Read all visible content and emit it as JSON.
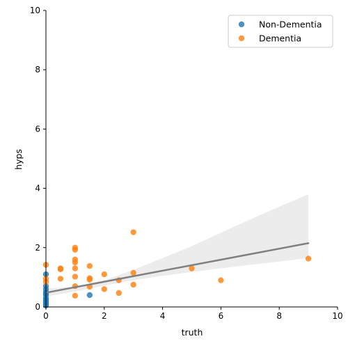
{
  "chart_data": {
    "type": "scatter",
    "xlabel": "truth",
    "ylabel": "hyps",
    "xlim": [
      0,
      10
    ],
    "ylim": [
      0,
      10
    ],
    "x_ticks": [
      0,
      2,
      4,
      6,
      8,
      10
    ],
    "y_ticks": [
      0,
      2,
      4,
      6,
      8,
      10
    ],
    "grid": false,
    "legend_position": "top-right",
    "series": [
      {
        "name": "Non-Dementia",
        "color": "#1f77b4",
        "points": [
          [
            0,
            1.1
          ],
          [
            0,
            0.7
          ],
          [
            0,
            0.6
          ],
          [
            0,
            0.5
          ],
          [
            0,
            0.45
          ],
          [
            0,
            0.4
          ],
          [
            0,
            0.3
          ],
          [
            0,
            0.25
          ],
          [
            0,
            0.2
          ],
          [
            0,
            0.15
          ],
          [
            0,
            0.1
          ],
          [
            0,
            0.05
          ],
          [
            1.5,
            0.4
          ]
        ]
      },
      {
        "name": "Dementia",
        "color": "#ff7f0e",
        "points": [
          [
            0,
            1.42
          ],
          [
            0,
            0.95
          ],
          [
            0,
            0.85
          ],
          [
            0.5,
            1.3
          ],
          [
            0.5,
            1.27
          ],
          [
            0.5,
            0.95
          ],
          [
            1,
            2.0
          ],
          [
            1,
            1.93
          ],
          [
            1,
            1.6
          ],
          [
            1,
            1.5
          ],
          [
            1,
            1.3
          ],
          [
            1,
            1.02
          ],
          [
            1,
            0.7
          ],
          [
            1,
            0.38
          ],
          [
            1.5,
            1.38
          ],
          [
            1.5,
            0.97
          ],
          [
            1.5,
            0.92
          ],
          [
            1.5,
            0.68
          ],
          [
            2,
            1.1
          ],
          [
            2,
            0.6
          ],
          [
            2.5,
            0.9
          ],
          [
            2.5,
            0.47
          ],
          [
            3,
            2.52
          ],
          [
            3,
            1.15
          ],
          [
            3,
            0.75
          ],
          [
            5,
            1.3
          ],
          [
            6,
            0.9
          ],
          [
            9,
            1.63
          ]
        ]
      }
    ],
    "regression": {
      "color": "#808080",
      "line": [
        [
          0,
          0.48
        ],
        [
          9,
          2.15
        ]
      ],
      "ci_upper": [
        [
          0,
          0.62
        ],
        [
          1,
          0.68
        ],
        [
          2,
          0.9
        ],
        [
          3,
          1.25
        ],
        [
          4,
          1.65
        ],
        [
          5,
          2.05
        ],
        [
          6,
          2.5
        ],
        [
          7,
          2.95
        ],
        [
          8,
          3.38
        ],
        [
          9,
          3.8
        ]
      ],
      "ci_lower": [
        [
          0,
          0.35
        ],
        [
          1,
          0.52
        ],
        [
          2,
          0.72
        ],
        [
          3,
          0.9
        ],
        [
          4,
          1.05
        ],
        [
          5,
          1.18
        ],
        [
          6,
          1.3
        ],
        [
          7,
          1.42
        ],
        [
          8,
          1.53
        ],
        [
          9,
          1.65
        ]
      ]
    }
  }
}
